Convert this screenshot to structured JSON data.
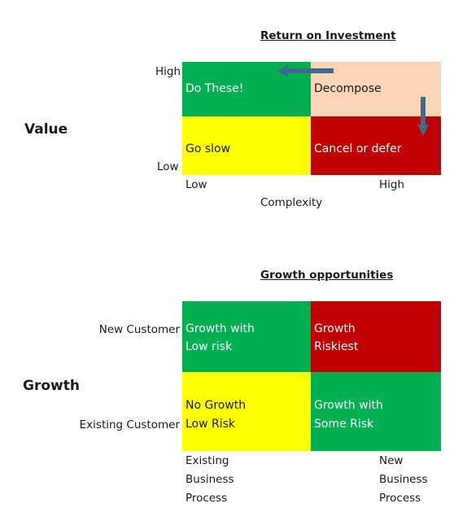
{
  "roi_matrix": {
    "title": "Return on Investment",
    "side_label": "Value",
    "y_high": "High",
    "y_low": "Low",
    "x_low": "Low",
    "x_high": "High",
    "x_axis_label": "Complexity",
    "cells": {
      "top_left": {
        "text": "Do These!",
        "color": "#00b050"
      },
      "top_right": {
        "text": "Decompose",
        "color": "#fbd5b5"
      },
      "bottom_left": {
        "text": "Go slow",
        "color": "#ffff00"
      },
      "bottom_right": {
        "text": "Cancel or defer",
        "color": "#c00000"
      }
    },
    "arrow_color": "#3f6a8f"
  },
  "growth_matrix": {
    "title": "Growth opportunities",
    "side_label": "Growth",
    "y_top": "New Customer",
    "y_bottom": "Existing Customer",
    "x_left": [
      "Existing",
      "Business",
      "Process"
    ],
    "x_right": [
      "New",
      "Business",
      "Process"
    ],
    "cells": {
      "top_left": {
        "lines": [
          "Growth with",
          "Low risk"
        ],
        "color": "#00b050"
      },
      "top_right": {
        "lines": [
          "Growth",
          "Riskiest"
        ],
        "color": "#c00000"
      },
      "bottom_left": {
        "lines": [
          "No Growth",
          "Low Risk"
        ],
        "color": "#ffff00"
      },
      "bottom_right": {
        "lines": [
          "Growth with",
          "Some Risk"
        ],
        "color": "#00b050"
      }
    }
  }
}
